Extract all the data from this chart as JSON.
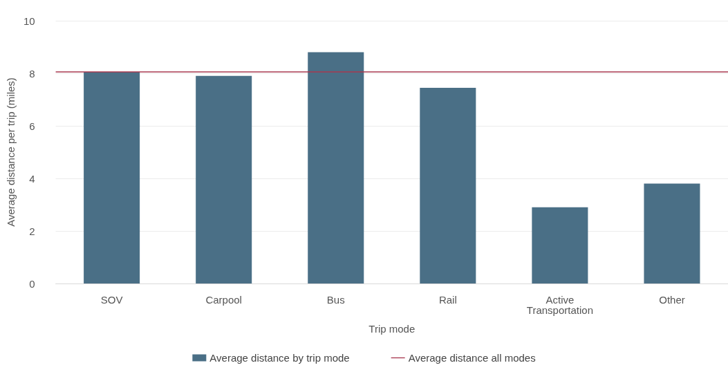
{
  "chart_data": {
    "type": "bar",
    "xlabel": "Trip mode",
    "ylabel": "Average distance per trip (miles)",
    "categories": [
      "SOV",
      "Carpool",
      "Bus",
      "Rail",
      "Active\nTransportation",
      "Other"
    ],
    "series": [
      {
        "name": "Average distance by trip mode",
        "color": "#4a6f86",
        "values": [
          8.05,
          7.9,
          8.8,
          7.45,
          2.9,
          3.8
        ]
      }
    ],
    "ylim": [
      0,
      10
    ],
    "yticks": [
      0,
      2,
      4,
      6,
      8,
      10
    ],
    "grid": "y",
    "legend": "bottom",
    "ref_lines": [
      {
        "axis": "y",
        "value": 8.05,
        "label": "Average distance all modes",
        "color": "#a8384f"
      }
    ]
  }
}
